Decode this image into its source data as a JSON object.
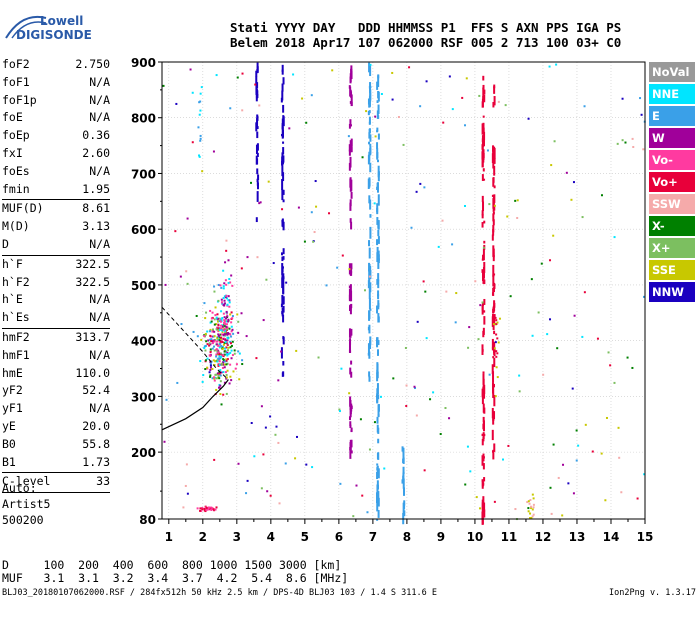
{
  "logo": {
    "line1": "Lowell",
    "line2": "DIGISONDE"
  },
  "header": {
    "line1": "Stati YYYY DAY   DDD HHMMSS P1  FFS S AXN PPS IGA PS",
    "line2": "Belem 2018 Apr17 107 062000 RSF 005 2 713 100 03+ C0"
  },
  "params": [
    {
      "name": "foF2",
      "value": "2.750",
      "sep_after": false
    },
    {
      "name": "foF1",
      "value": "N/A",
      "sep_after": false
    },
    {
      "name": "foF1p",
      "value": "N/A",
      "sep_after": false
    },
    {
      "name": "foE",
      "value": "N/A",
      "sep_after": false
    },
    {
      "name": "foEp",
      "value": "0.36",
      "sep_after": false
    },
    {
      "name": "fxI",
      "value": "2.60",
      "sep_after": false
    },
    {
      "name": "foEs",
      "value": "N/A",
      "sep_after": false
    },
    {
      "name": "fmin",
      "value": "1.95",
      "sep_after": true
    },
    {
      "name": "MUF(D)",
      "value": "8.61",
      "sep_after": false
    },
    {
      "name": "M(D)",
      "value": "3.13",
      "sep_after": false
    },
    {
      "name": "D",
      "value": "N/A",
      "sep_after": true
    },
    {
      "name": "h`F",
      "value": "322.5",
      "sep_after": false
    },
    {
      "name": "h`F2",
      "value": "322.5",
      "sep_after": false
    },
    {
      "name": "h`E",
      "value": "N/A",
      "sep_after": false
    },
    {
      "name": "h`Es",
      "value": "N/A",
      "sep_after": true
    },
    {
      "name": "hmF2",
      "value": "313.7",
      "sep_after": false
    },
    {
      "name": "hmF1",
      "value": "N/A",
      "sep_after": false
    },
    {
      "name": "hmE",
      "value": "110.0",
      "sep_after": false
    },
    {
      "name": "yF2",
      "value": "52.4",
      "sep_after": false
    },
    {
      "name": "yF1",
      "value": "N/A",
      "sep_after": false
    },
    {
      "name": "yE",
      "value": "20.0",
      "sep_after": false
    },
    {
      "name": "B0",
      "value": "55.8",
      "sep_after": false
    },
    {
      "name": "B1",
      "value": "1.73",
      "sep_after": true
    },
    {
      "name": "C-level",
      "value": "33",
      "sep_after": true
    }
  ],
  "auto": {
    "line1": "Auto:",
    "line2": "Artist5",
    "line3": "500200"
  },
  "legend": [
    {
      "label": "NoVal",
      "color": "#999999"
    },
    {
      "label": "NNE",
      "color": "#00e5ff"
    },
    {
      "label": "E",
      "color": "#3aa0e8"
    },
    {
      "label": "W",
      "color": "#a0009a"
    },
    {
      "label": "Vo-",
      "color": "#ff3aa0"
    },
    {
      "label": "Vo+",
      "color": "#e8003a"
    },
    {
      "label": "SSW",
      "color": "#f5aaaa"
    },
    {
      "label": "X-",
      "color": "#008000"
    },
    {
      "label": "X+",
      "color": "#7cbf60"
    },
    {
      "label": "SSE",
      "color": "#c8c800"
    },
    {
      "label": "NNW",
      "color": "#1a00c0"
    }
  ],
  "dmuf": {
    "line1": "D     100  200  400  600  800 1000 1500 3000 [km]",
    "line2": "MUF   3.1  3.1  3.2  3.4  3.7  4.2  5.4  8.6 [MHz]"
  },
  "footer": {
    "left": "BLJ03_20180107062000.RSF / 284fx512h 50 kHz 2.5 km / DPS-4D BLJ03 103 / 1.4 S 311.6 E",
    "right": "Ion2Png v. 1.3.17"
  },
  "chart_data": {
    "type": "scatter",
    "xlim": [
      0.8,
      15.0
    ],
    "ylim": [
      80,
      900
    ],
    "xticks": [
      "1",
      "2",
      "3",
      "4",
      "5",
      "6",
      "7",
      "8",
      "9",
      "10",
      "11",
      "12",
      "13",
      "14",
      "15"
    ],
    "yticks": [
      "80",
      "200",
      "300",
      "400",
      "500",
      "600",
      "700",
      "800",
      "900"
    ],
    "grid": true,
    "profile_curve": [
      [
        0.8,
        240
      ],
      [
        1.5,
        260
      ],
      [
        2.0,
        280
      ],
      [
        2.3,
        300
      ],
      [
        2.6,
        318
      ],
      [
        2.75,
        330
      ]
    ],
    "extrapolated_profile": [
      [
        0.8,
        460
      ],
      [
        1.4,
        420
      ],
      [
        2.0,
        380
      ],
      [
        2.4,
        350
      ],
      [
        2.75,
        330
      ]
    ],
    "vertical_bands": [
      {
        "x": 3.6,
        "ymin": 620,
        "ymax": 900,
        "color": "#1a00c0"
      },
      {
        "x": 4.35,
        "ymin": 340,
        "ymax": 900,
        "color": "#1a00c0"
      },
      {
        "x": 6.35,
        "ymin": 200,
        "ymax": 900,
        "color": "#a0009a"
      },
      {
        "x": 6.9,
        "ymin": 330,
        "ymax": 900,
        "color": "#3aa0e8"
      },
      {
        "x": 7.15,
        "ymin": 80,
        "ymax": 900,
        "color": "#3aa0e8"
      },
      {
        "x": 7.9,
        "ymin": 80,
        "ymax": 220,
        "color": "#3aa0e8"
      },
      {
        "x": 10.25,
        "ymin": 80,
        "ymax": 900,
        "color": "#e8003a"
      },
      {
        "x": 10.55,
        "ymin": 200,
        "ymax": 860,
        "color": "#e8003a"
      }
    ],
    "clusters": [
      {
        "cx": 2.45,
        "cy": 390,
        "sx": 0.22,
        "sy": 40,
        "n": 320,
        "colors": [
          "#e8003a",
          "#7cbf60",
          "#a0009a",
          "#00e5ff",
          "#c8c800",
          "#3aa0e8",
          "#008000",
          "#ff3aa0"
        ]
      },
      {
        "cx": 2.65,
        "cy": 450,
        "sx": 0.08,
        "sy": 45,
        "n": 80,
        "colors": [
          "#ff3aa0",
          "#a0009a",
          "#00e5ff"
        ]
      },
      {
        "cx": 2.1,
        "cy": 100,
        "sx": 0.15,
        "sy": 3,
        "n": 30,
        "colors": [
          "#ff3aa0",
          "#e8003a"
        ]
      },
      {
        "cx": 11.6,
        "cy": 110,
        "sx": 0.06,
        "sy": 18,
        "n": 18,
        "colors": [
          "#f5aaaa",
          "#c8c800"
        ]
      },
      {
        "cx": 10.6,
        "cy": 400,
        "sx": 0.05,
        "sy": 40,
        "n": 18,
        "colors": [
          "#c8c800",
          "#e8003a"
        ]
      },
      {
        "cx": 1.9,
        "cy": 800,
        "sx": 0.03,
        "sy": 40,
        "n": 12,
        "colors": [
          "#00e5ff",
          "#3aa0e8"
        ]
      }
    ]
  }
}
